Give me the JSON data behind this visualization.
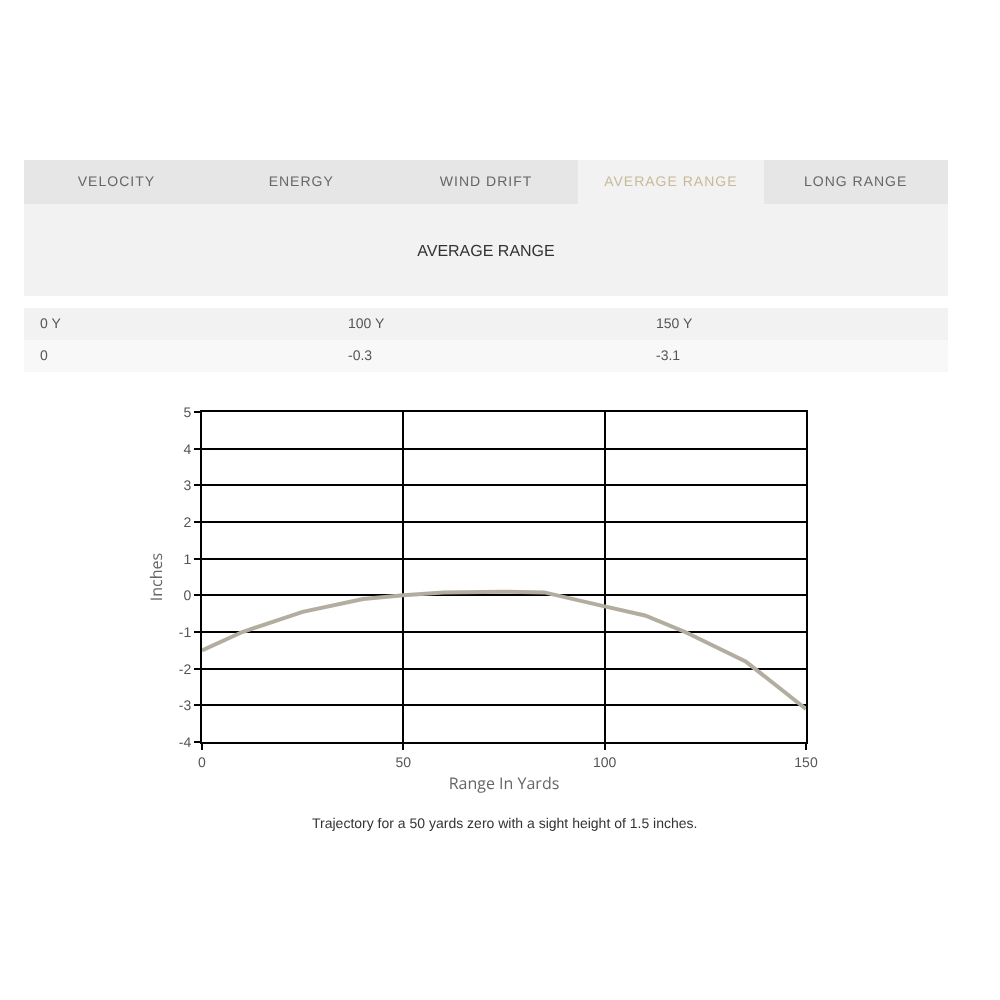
{
  "chart_data": [
    {
      "type": "other",
      "title": "AVERAGE RANGE",
      "categories": [
        "VELOCITY",
        "ENERGY",
        "WIND DRIFT",
        "AVERAGE RANGE",
        "LONG RANGE"
      ],
      "annotations": [
        "0 Y",
        "100 Y",
        "150 Y",
        "0",
        "-0.3",
        "-3.1"
      ]
    },
    {
      "type": "line",
      "xlabel": "Range In Yards",
      "ylabel": "Inches",
      "x": [
        0,
        10,
        25,
        40,
        50,
        60,
        75,
        85,
        100,
        110,
        120,
        135,
        150
      ],
      "series": [
        {
          "color": "#b3ad9f",
          "values": [
            -1.5,
            -1.0,
            -0.45,
            -0.1,
            0,
            0.08,
            0.1,
            0.08,
            -0.3,
            -0.55,
            -1.0,
            -1.8,
            -3.1
          ]
        }
      ],
      "xlim": [
        0,
        150
      ],
      "xticks": [
        0,
        50,
        100,
        150
      ],
      "ylim": [
        -4,
        5
      ],
      "yticks": [
        -4,
        -3,
        -2,
        -1,
        0,
        1,
        2,
        3,
        4,
        5
      ],
      "grid": true,
      "marker": "none",
      "line_style": "solid",
      "annotations": [
        "Trajectory for a 50 yards zero with a sight height of 1.5 inches."
      ]
    }
  ]
}
